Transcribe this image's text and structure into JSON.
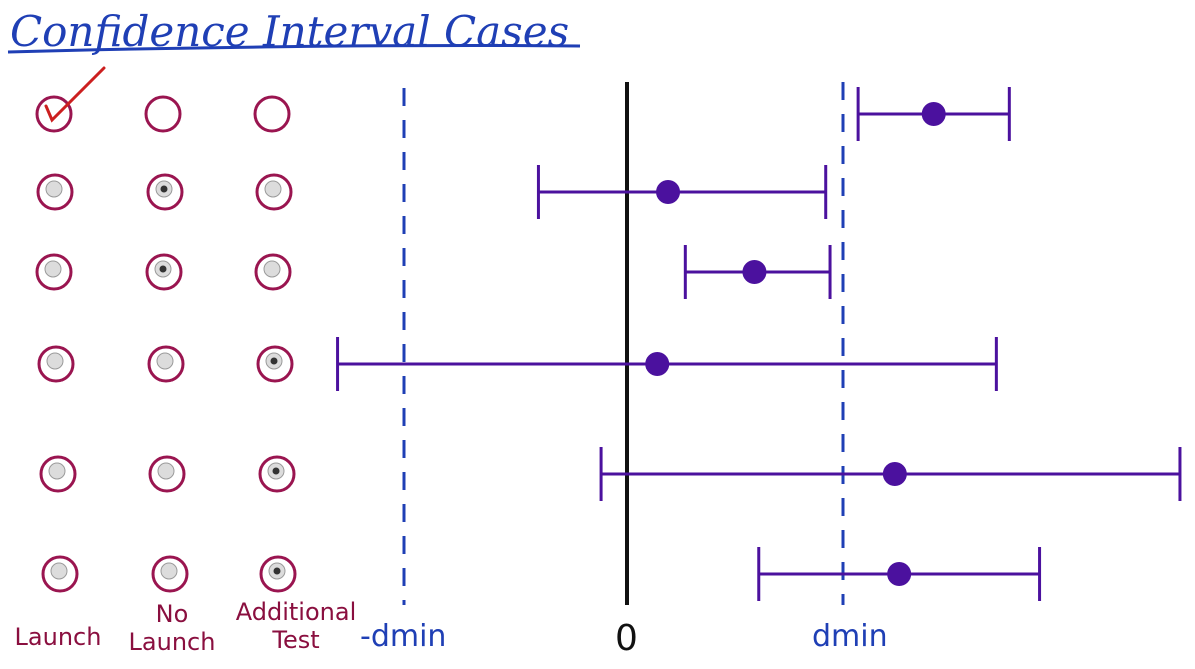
{
  "title": "Confidence Interval Cases",
  "columns": [
    "Launch",
    "No\nLaunch",
    "Additional\nTest"
  ],
  "axis_labels": {
    "neg_dmin": "-dmin",
    "zero": "0",
    "dmin": "dmin"
  },
  "colors": {
    "title": "#1f3fb5",
    "radio_ring": "#9a1550",
    "check": "#cc1f1f",
    "interval": "#4b119e",
    "dashed": "#1f3fb5",
    "zero_line": "#111111"
  },
  "rows": [
    {
      "radios": [
        "checked",
        "empty",
        "empty"
      ],
      "checkmark": true,
      "interval": {
        "lower": 1.07,
        "point": 1.42,
        "upper": 1.77
      }
    },
    {
      "radios": [
        "grey",
        "selected",
        "grey"
      ],
      "checkmark": false,
      "interval": {
        "lower": -0.41,
        "point": 0.19,
        "upper": 0.92
      }
    },
    {
      "radios": [
        "grey",
        "selected",
        "grey"
      ],
      "checkmark": false,
      "interval": {
        "lower": 0.27,
        "point": 0.59,
        "upper": 0.94
      }
    },
    {
      "radios": [
        "grey",
        "grey",
        "selected"
      ],
      "checkmark": false,
      "interval": {
        "lower": -1.34,
        "point": 0.14,
        "upper": 1.71
      }
    },
    {
      "radios": [
        "grey",
        "grey",
        "selected"
      ],
      "checkmark": false,
      "interval": {
        "lower": -0.12,
        "point": 1.24,
        "upper": 2.56
      }
    },
    {
      "radios": [
        "grey",
        "grey",
        "selected"
      ],
      "checkmark": false,
      "interval": {
        "lower": 0.61,
        "point": 1.26,
        "upper": 1.91
      }
    }
  ]
}
